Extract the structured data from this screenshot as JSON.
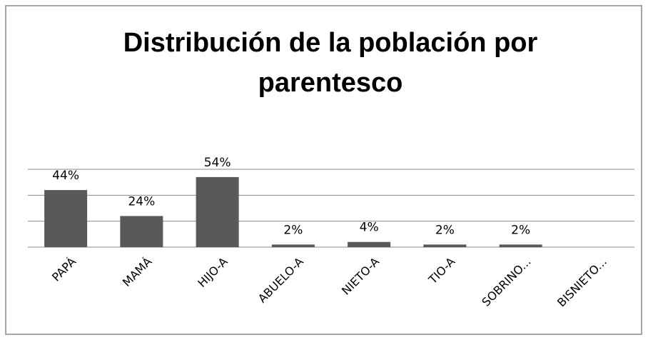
{
  "chart_data": {
    "type": "bar",
    "title": [
      "Distribución de la población  por",
      "parentesco"
    ],
    "categories": [
      "PAPÁ",
      "MAMÁ",
      "HIJO-A",
      "ABUELO-A",
      "NIETO-A",
      "TIO-A",
      "SOBRINO...",
      "BISNIETO..."
    ],
    "values": [
      44,
      24,
      54,
      2,
      4,
      2,
      2,
      0
    ],
    "value_labels": [
      "44%",
      "24%",
      "54%",
      "2%",
      "4%",
      "2%",
      "2%",
      null
    ],
    "color": "#595959",
    "ylim": [
      0,
      60
    ],
    "yticks": [
      0,
      20,
      40,
      60
    ],
    "grid": true
  }
}
